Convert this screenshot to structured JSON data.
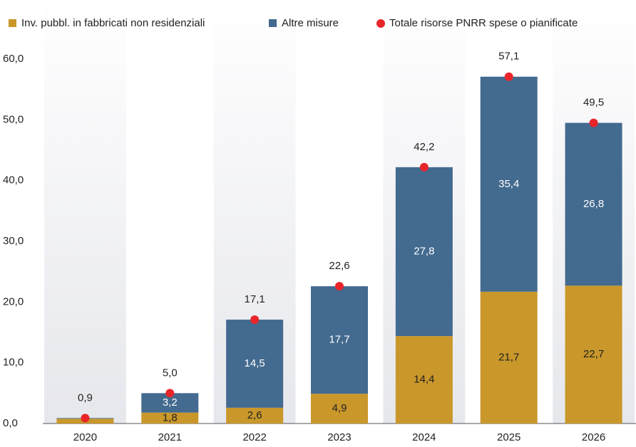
{
  "chart_data": {
    "type": "stacked-bar",
    "categories": [
      "2020",
      "2021",
      "2022",
      "2023",
      "2024",
      "2025",
      "2026"
    ],
    "series": [
      {
        "name": "Inv. pubbl. in fabbricati non residenziali",
        "color": "#c9972a",
        "values": [
          0.8,
          1.8,
          2.6,
          4.9,
          14.4,
          21.7,
          22.7
        ],
        "value_labels": [
          null,
          "1,8",
          "2,6",
          "4,9",
          "14,4",
          "21,7",
          "22,7"
        ]
      },
      {
        "name": "Altre misure",
        "color": "#436a8f",
        "values": [
          0.1,
          3.2,
          14.5,
          17.7,
          27.8,
          35.4,
          26.8
        ],
        "value_labels": [
          null,
          "3,2",
          "14,5",
          "17,7",
          "27,8",
          "35,4",
          "26,8"
        ]
      },
      {
        "name": "Totale risorse PNRR spese o pianificate",
        "color": "#e8262a",
        "type": "dot",
        "values": [
          0.9,
          5.0,
          17.1,
          22.6,
          42.2,
          57.1,
          49.5
        ],
        "value_labels": [
          "0,9",
          "5,0",
          "17,1",
          "22,6",
          "42,2",
          "57,1",
          "49,5"
        ]
      }
    ],
    "ylim": [
      0,
      60
    ],
    "yticks": [
      {
        "value": 0,
        "label": "0,0"
      },
      {
        "value": 10,
        "label": "10,0"
      },
      {
        "value": 20,
        "label": "20,0"
      },
      {
        "value": 30,
        "label": "30,0"
      },
      {
        "value": 40,
        "label": "40,0"
      },
      {
        "value": 50,
        "label": "50,0"
      },
      {
        "value": 60,
        "label": "60,0"
      }
    ],
    "grid": false
  }
}
